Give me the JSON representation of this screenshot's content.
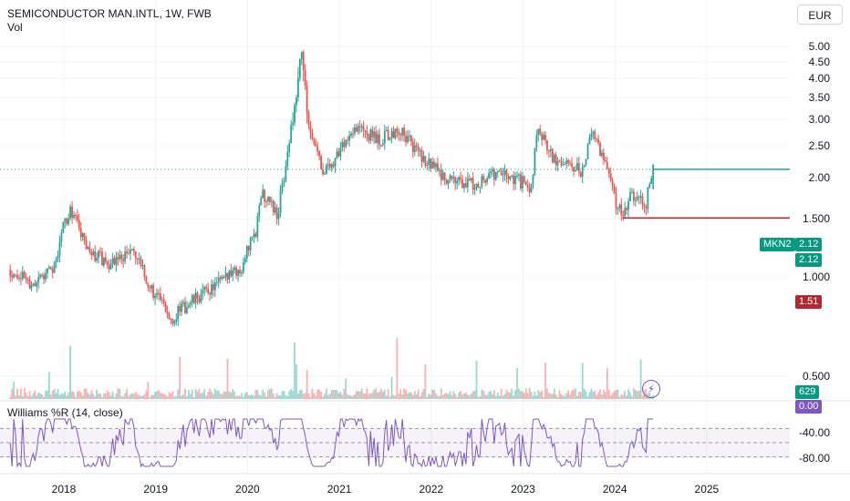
{
  "header": {
    "title": "SEMICONDUCTOR MAN.INTL, 1W, FWB",
    "volume_label": "Vol",
    "currency": "EUR"
  },
  "indicator": {
    "label": "Williams %R (14, close)",
    "value": "0.00",
    "ticks": [
      "-40.00",
      "-80.00"
    ]
  },
  "price_tags": {
    "ticker": "MKN2",
    "last": "2.12",
    "last2": "2.12",
    "low": "1.51",
    "volume": "629"
  },
  "colors": {
    "up": "#26a69a",
    "down": "#ef5350",
    "wr": "#7e57c2",
    "last_tag": "#089981",
    "low_tag": "#b22833"
  },
  "chart_data": {
    "type": "candlestick",
    "title": "SEMICONDUCTOR MAN.INTL, 1W, FWB",
    "y_ticks": [
      "5.00",
      "4.50",
      "4.00",
      "3.50",
      "3.00",
      "2.50",
      "2.00",
      "1.500",
      "1.000",
      "0.500"
    ],
    "x_ticks": [
      "2018",
      "2019",
      "2020",
      "2021",
      "2022",
      "2023",
      "2024",
      "2025"
    ],
    "ylim": [
      0.3,
      5.2
    ],
    "price_path": [
      [
        "2017-06",
        1.05
      ],
      [
        "2017-09",
        0.95
      ],
      [
        "2017-12",
        1.1
      ],
      [
        "2018-01",
        1.45
      ],
      [
        "2018-02",
        1.6
      ],
      [
        "2018-04",
        1.2
      ],
      [
        "2018-07",
        1.1
      ],
      [
        "2018-10",
        1.2
      ],
      [
        "2018-12",
        0.95
      ],
      [
        "2019-03",
        0.75
      ],
      [
        "2019-06",
        0.85
      ],
      [
        "2019-09",
        0.95
      ],
      [
        "2019-12",
        1.05
      ],
      [
        "2020-02",
        1.35
      ],
      [
        "2020-03",
        1.8
      ],
      [
        "2020-05",
        1.55
      ],
      [
        "2020-06",
        2.2
      ],
      [
        "2020-07",
        3.1
      ],
      [
        "2020-08",
        4.9
      ],
      [
        "2020-09",
        2.9
      ],
      [
        "2020-11",
        2.05
      ],
      [
        "2021-01",
        2.4
      ],
      [
        "2021-03",
        2.9
      ],
      [
        "2021-06",
        2.6
      ],
      [
        "2021-09",
        2.8
      ],
      [
        "2021-12",
        2.25
      ],
      [
        "2022-03",
        2.0
      ],
      [
        "2022-06",
        1.9
      ],
      [
        "2022-09",
        2.05
      ],
      [
        "2022-12",
        2.0
      ],
      [
        "2023-02",
        1.85
      ],
      [
        "2023-03",
        2.8
      ],
      [
        "2023-05",
        2.25
      ],
      [
        "2023-07",
        2.15
      ],
      [
        "2023-09",
        2.1
      ],
      [
        "2023-10",
        2.85
      ],
      [
        "2023-12",
        2.1
      ],
      [
        "2024-01",
        1.7
      ],
      [
        "2024-02",
        1.55
      ],
      [
        "2024-03",
        1.75
      ],
      [
        "2024-05",
        1.65
      ],
      [
        "2024-06",
        2.12
      ]
    ],
    "last_price": 2.12,
    "low_price": 1.51,
    "wr_levels": [
      -20,
      -50,
      -80
    ]
  }
}
